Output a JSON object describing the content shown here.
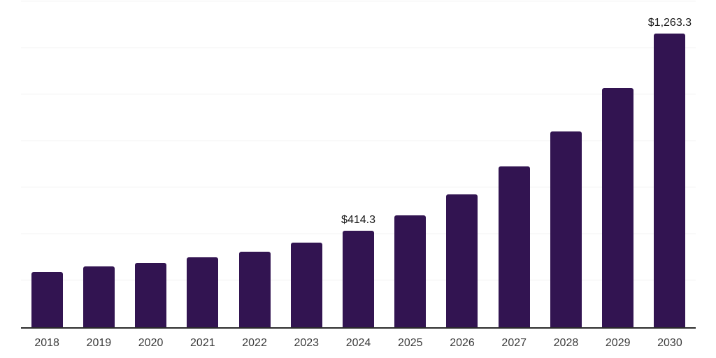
{
  "chart_data": {
    "type": "bar",
    "title": "",
    "xlabel": "",
    "ylabel": "",
    "categories": [
      "2018",
      "2019",
      "2020",
      "2021",
      "2022",
      "2023",
      "2024",
      "2025",
      "2026",
      "2027",
      "2028",
      "2029",
      "2030"
    ],
    "values": [
      237,
      261,
      276,
      300,
      324,
      363,
      414.3,
      480,
      570,
      690,
      840,
      1028,
      1263.3
    ],
    "data_labels": [
      {
        "index": 6,
        "text": "$414.3"
      },
      {
        "index": 12,
        "text": "$1,263.3"
      }
    ],
    "ylim": [
      0,
      1400
    ],
    "y_ticks": [
      200,
      400,
      600,
      800,
      1000,
      1200,
      1400
    ],
    "y_tick_labels_visible": false,
    "grid": "horizontal",
    "legend": "none",
    "colors": {
      "bar": "#321451",
      "gridline": "#f1f1f1",
      "axis_line": "#2b2b2b",
      "x_label": "#3c3c3c",
      "data_label": "#1a1a1a",
      "background": "#ffffff"
    }
  }
}
